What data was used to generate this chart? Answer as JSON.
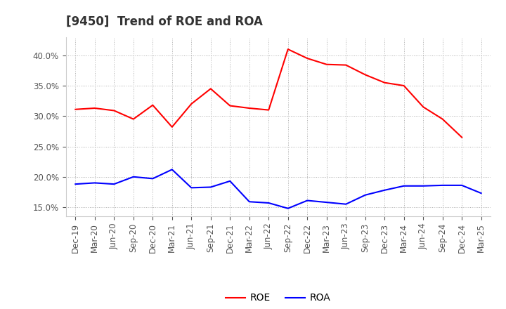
{
  "title": "[9450]  Trend of ROE and ROA",
  "x_labels": [
    "Dec-19",
    "Mar-20",
    "Jun-20",
    "Sep-20",
    "Dec-20",
    "Mar-21",
    "Jun-21",
    "Sep-21",
    "Dec-21",
    "Mar-22",
    "Jun-22",
    "Sep-22",
    "Dec-22",
    "Mar-23",
    "Jun-23",
    "Sep-23",
    "Dec-23",
    "Mar-24",
    "Jun-24",
    "Sep-24",
    "Dec-24",
    "Mar-25"
  ],
  "roe": [
    31.1,
    31.3,
    30.9,
    29.5,
    31.8,
    28.2,
    32.0,
    34.5,
    31.7,
    31.3,
    31.0,
    41.0,
    39.5,
    38.5,
    38.4,
    36.8,
    35.5,
    35.0,
    31.5,
    29.5,
    26.5,
    null
  ],
  "roa": [
    18.8,
    19.0,
    18.8,
    20.0,
    19.7,
    21.2,
    18.2,
    18.3,
    19.3,
    15.9,
    15.7,
    14.8,
    16.1,
    15.8,
    15.5,
    17.0,
    17.8,
    18.5,
    18.5,
    18.6,
    18.6,
    17.3
  ],
  "roe_color": "#ff0000",
  "roa_color": "#0000ff",
  "background_color": "#ffffff",
  "grid_color": "#b0b0b0",
  "ylim_min": 13.5,
  "ylim_max": 43.0,
  "yticks": [
    15.0,
    20.0,
    25.0,
    30.0,
    35.0,
    40.0
  ],
  "title_fontsize": 12,
  "tick_fontsize": 8.5,
  "legend_fontsize": 10,
  "title_color": "#333333",
  "tick_color": "#555555"
}
